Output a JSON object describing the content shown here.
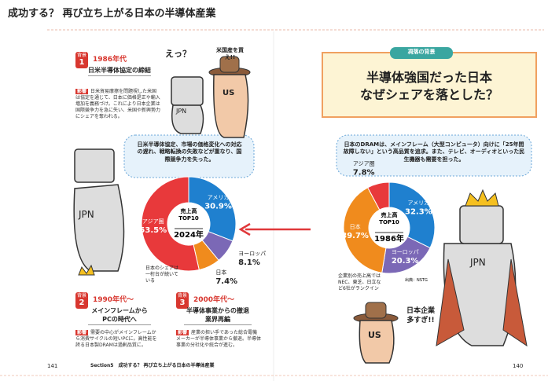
{
  "header": {
    "title": "成功する？ 再び立ち上がる日本の半導体産業"
  },
  "mascot_labels": {
    "japan": "JPN",
    "us": "US"
  },
  "left_page": {
    "page_number": "141",
    "running_head": "Section5　成功する？ 再び立ち上がる日本の半導体産業",
    "backgrounds": [
      {
        "badge": "背景",
        "number": "1",
        "period": "1986年代",
        "title": "日米半導体協定の締結",
        "effect_tag": "影響",
        "effect": "日米貿易摩擦を問題視した米国は協定を通じて、日本に価格是正や輸入増加を義務づけ。これにより日本企業は国際競争力を急に失い、米国や新興勢力にシェアを奪われる。"
      },
      {
        "badge": "背景",
        "number": "2",
        "period": "1990年代〜",
        "title": "メインフレームから PCの時代へ",
        "effect_tag": "影響",
        "effect": "需要の中心がメインフレームから消費サイクルの短いPCに。高性能を誇る日本製DRAMは過剰品質に。"
      },
      {
        "badge": "背景",
        "number": "3",
        "period": "2000年代〜",
        "title": "半導体事業からの撤退 業界再編",
        "effect_tag": "影響",
        "effect": "産業の担い手であった総合電機メーカーが半導体事業から撤退。半導体事業の分社化や統合が進む。"
      }
    ],
    "speech": [
      "えっ？",
      "米国産を買え!!"
    ],
    "bubble": "日米半導体協定、市場の価格変化への対応の遅れ、戦略転換の失敗などが重なり、国際競争力を失った。",
    "share_note": "日本のシェアは一桁台が続いている"
  },
  "right_page": {
    "page_number": "140",
    "tag": "凋落の背景",
    "title_lines": [
      "半導体強国だった日本",
      "なぜシェアを落とした？"
    ],
    "bubble": "日本のDRAMは、メインフレーム（大型コンピュータ）向けに「25年間故障しない」という高品質を追求。また、テレビ、オーディオといった民生機器も需要を担った。",
    "company_note": "企業別の売上高ではNEC、東芝、日立など6社がランクイン",
    "speech": "日本企業多すぎ!!"
  },
  "chart_data": [
    {
      "type": "pie",
      "donut": true,
      "center_lines": [
        "売上高",
        "TOP10"
      ],
      "year": "2024年",
      "categories": [
        "アメリカ",
        "ヨーロッパ",
        "日本",
        "アジア圏"
      ],
      "values": [
        30.9,
        8.1,
        7.4,
        53.5
      ],
      "value_labels": [
        "30.9%",
        "8.1%",
        "7.4%",
        "53.5%"
      ],
      "colors": [
        "#1f80cf",
        "#7b68b6",
        "#f08b1d",
        "#e8393b"
      ]
    },
    {
      "type": "pie",
      "donut": true,
      "center_lines": [
        "売上高",
        "TOP10"
      ],
      "year": "1986年",
      "categories": [
        "アメリカ",
        "ヨーロッパ",
        "日本",
        "アジア圏"
      ],
      "values": [
        32.3,
        20.3,
        39.7,
        7.8
      ],
      "value_labels": [
        "32.3%",
        "20.3%",
        "39.7%",
        "7.8%"
      ],
      "colors": [
        "#1f80cf",
        "#7b68b6",
        "#f08b1d",
        "#e8393b"
      ],
      "source": "出典：NSTG"
    }
  ]
}
